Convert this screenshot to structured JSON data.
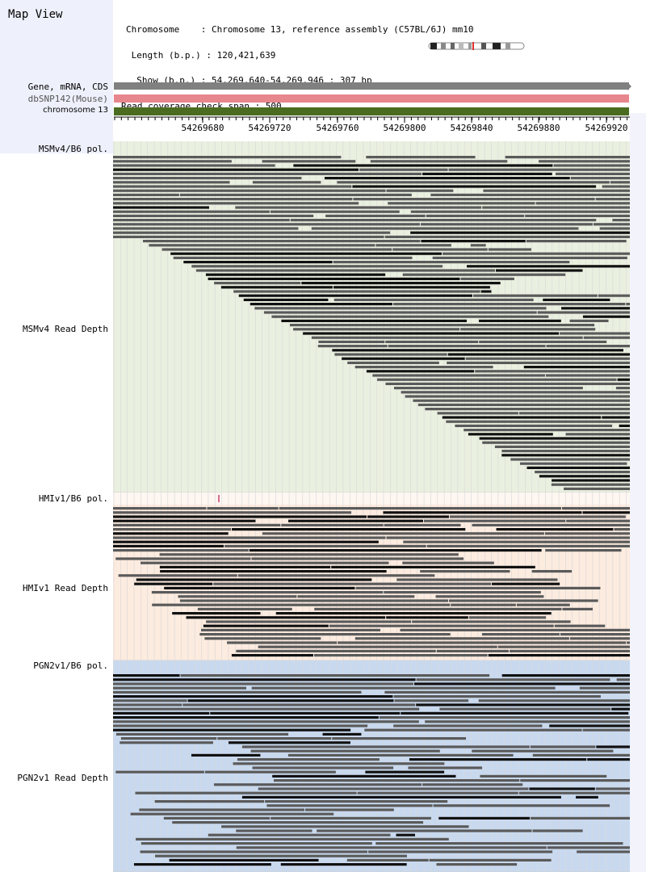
{
  "app": {
    "title": "Map View"
  },
  "info": {
    "chromosome_line": "Chromosome    : Chromosome 13, reference assembly (C57BL/6J) mm10",
    "length_line": " Length (b.p.) : 120,421,639",
    "show_line": "  Show (b.p.) : 54,269,640-54,269,946 : 307 bp",
    "coverage_line": "Read coverage check span : 500"
  },
  "tracks": [
    {
      "label": "Gene, mRNA, CDS",
      "color": "#808080"
    },
    {
      "label": "dbSNP142(Mouse)",
      "color": "#e8868e"
    },
    {
      "label": "chromosome 13",
      "color": "#4a6b20"
    }
  ],
  "ruler": {
    "ticks": [
      "54269680",
      "54269720",
      "54269760",
      "54269800",
      "54269840",
      "54269880",
      "54269920"
    ]
  },
  "panels": [
    {
      "pol_label": "MSMv4/B6 pol.",
      "depth_label": "MSMv4 Read Depth",
      "bg": "#eaf0e0",
      "coverage_bg": "#f8e7df"
    },
    {
      "pol_label": "HMIv1/B6 pol.",
      "depth_label": "HMIv1 Read Depth",
      "bg": "#fcebdf",
      "coverage_bg": "#f8e3d4"
    },
    {
      "pol_label": "PGN2v1/B6 pol.",
      "depth_label": "PGN2v1 Read Depth",
      "bg": "#c8d9ef",
      "coverage_bg": "#c8d9ef"
    }
  ],
  "colors": {
    "read_dark": "#111111",
    "read_gray": "#5a5a5a",
    "grid": "#d8d8d8"
  }
}
